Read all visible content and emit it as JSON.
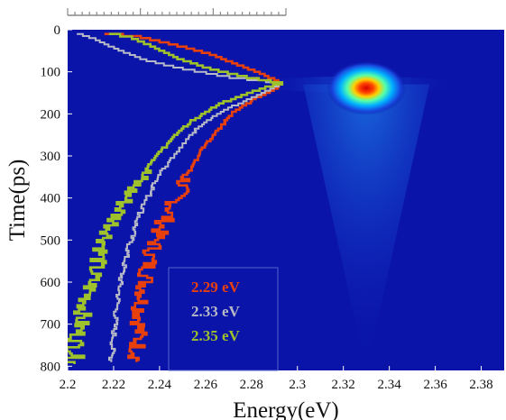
{
  "chart_data": {
    "type": "heatmap",
    "title": "",
    "xlabel": "Energy(eV)",
    "ylabel": "Time(ps)",
    "xlim": [
      2.2,
      2.39
    ],
    "ylim": [
      0,
      810
    ],
    "y_reversed": true,
    "x_ticks": [
      2.2,
      2.22,
      2.24,
      2.26,
      2.28,
      2.3,
      2.32,
      2.34,
      2.36,
      2.38
    ],
    "x_tick_labels": [
      "2.2",
      "2.22",
      "2.24",
      "2.26",
      "2.28",
      "2.3",
      "2.32",
      "2.34",
      "2.36",
      "2.38"
    ],
    "y_ticks": [
      0,
      100,
      200,
      300,
      400,
      500,
      600,
      700,
      800
    ],
    "y_tick_labels": [
      "0",
      "100",
      "200",
      "300",
      "400",
      "500",
      "600",
      "700",
      "800"
    ],
    "heatmap": {
      "background_color": "#0a14a8",
      "peak": {
        "energy": 2.33,
        "time": 130
      },
      "colormap": "jet"
    },
    "overlay_x_range": [
      2.2,
      2.293
    ],
    "series": [
      {
        "name": "2.29 eV",
        "color": "#e8400c",
        "points": [
          [
            2.216,
            10
          ],
          [
            2.232,
            20
          ],
          [
            2.248,
            40
          ],
          [
            2.262,
            60
          ],
          [
            2.274,
            85
          ],
          [
            2.286,
            110
          ],
          [
            2.293,
            130
          ],
          [
            2.29,
            145
          ],
          [
            2.282,
            165
          ],
          [
            2.272,
            200
          ],
          [
            2.264,
            250
          ],
          [
            2.257,
            300
          ],
          [
            2.251,
            360
          ],
          [
            2.246,
            420
          ],
          [
            2.24,
            480
          ],
          [
            2.236,
            540
          ],
          [
            2.234,
            600
          ],
          [
            2.232,
            660
          ],
          [
            2.231,
            720
          ],
          [
            2.23,
            790
          ]
        ]
      },
      {
        "name": "2.33 eV",
        "color": "#b7b9c6",
        "points": [
          [
            2.204,
            10
          ],
          [
            2.212,
            25
          ],
          [
            2.222,
            50
          ],
          [
            2.234,
            75
          ],
          [
            2.25,
            95
          ],
          [
            2.27,
            115
          ],
          [
            2.286,
            125
          ],
          [
            2.293,
            130
          ],
          [
            2.288,
            145
          ],
          [
            2.278,
            170
          ],
          [
            2.266,
            200
          ],
          [
            2.256,
            240
          ],
          [
            2.248,
            290
          ],
          [
            2.241,
            340
          ],
          [
            2.235,
            400
          ],
          [
            2.23,
            460
          ],
          [
            2.226,
            530
          ],
          [
            2.223,
            600
          ],
          [
            2.221,
            680
          ],
          [
            2.219,
            790
          ]
        ]
      },
      {
        "name": "2.35 eV",
        "color": "#9ec12c",
        "points": [
          [
            2.218,
            10
          ],
          [
            2.228,
            22
          ],
          [
            2.236,
            40
          ],
          [
            2.248,
            70
          ],
          [
            2.262,
            95
          ],
          [
            2.278,
            115
          ],
          [
            2.293,
            130
          ],
          [
            2.28,
            150
          ],
          [
            2.266,
            180
          ],
          [
            2.254,
            220
          ],
          [
            2.244,
            270
          ],
          [
            2.235,
            330
          ],
          [
            2.227,
            390
          ],
          [
            2.221,
            450
          ],
          [
            2.216,
            510
          ],
          [
            2.212,
            570
          ],
          [
            2.209,
            630
          ],
          [
            2.206,
            690
          ],
          [
            2.204,
            740
          ],
          [
            2.203,
            795
          ]
        ]
      }
    ],
    "legend": {
      "placement": "bottom-center",
      "entries": [
        "2.29 eV",
        "2.33 eV",
        "2.35 eV"
      ]
    }
  }
}
